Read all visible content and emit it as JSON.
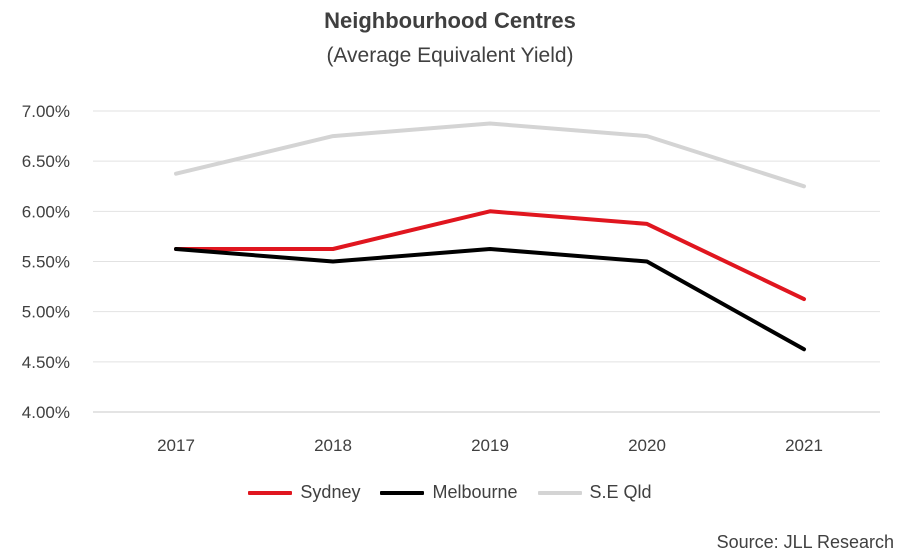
{
  "header": {
    "title": "Neighbourhood Centres",
    "subtitle": "(Average Equivalent Yield)"
  },
  "footer": {
    "source": "Source: JLL Research"
  },
  "chart_data": {
    "type": "line",
    "title": "Neighbourhood Centres",
    "subtitle": "(Average Equivalent Yield)",
    "xlabel": "",
    "ylabel": "",
    "categories": [
      "2017",
      "2018",
      "2019",
      "2020",
      "2021"
    ],
    "ylim": [
      0.04,
      0.07
    ],
    "yticks": [
      0.07,
      0.065,
      0.06,
      0.055,
      0.05,
      0.045,
      0.04
    ],
    "ytick_labels": [
      "7.00%",
      "6.50%",
      "6.00%",
      "5.50%",
      "5.00%",
      "4.50%",
      "4.00%"
    ],
    "grid": true,
    "legend_position": "bottom",
    "series": [
      {
        "name": "Sydney",
        "color": "#e0161f",
        "values": [
          0.05625,
          0.05625,
          0.06,
          0.05875,
          0.05125
        ]
      },
      {
        "name": "Melbourne",
        "color": "#000000",
        "values": [
          0.05625,
          0.055,
          0.05625,
          0.055,
          0.04625
        ]
      },
      {
        "name": "S.E Qld",
        "color": "#d4d4d4",
        "values": [
          0.06375,
          0.0675,
          0.06875,
          0.0675,
          0.0625
        ]
      }
    ]
  }
}
